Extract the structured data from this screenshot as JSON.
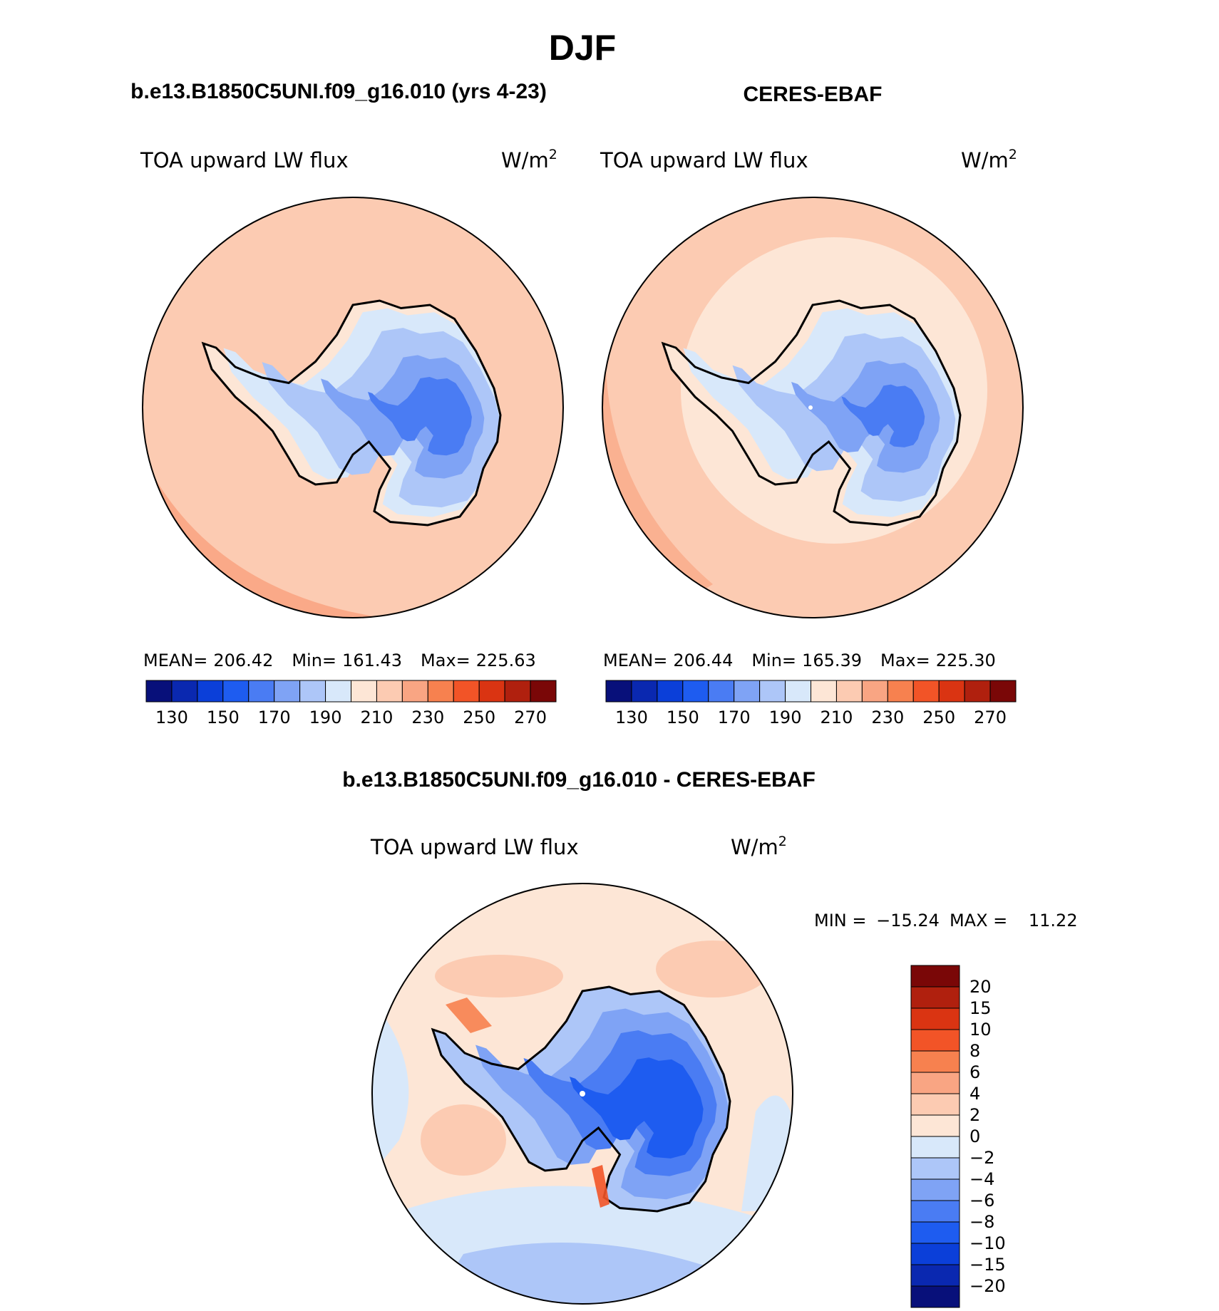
{
  "figure": {
    "season": "DJF",
    "model_title": "b.e13.B1850C5UNI.f09_g16.010 (yrs 4-23)",
    "obs_title": "CERES-EBAF",
    "diff_title": "b.e13.B1850C5UNI.f09_g16.010 - CERES-EBAF"
  },
  "panels": [
    {
      "id": "model",
      "variable": "TOA upward LW flux",
      "units_base": "W/m",
      "units_exp": "2",
      "mean_label": "MEAN=",
      "mean": "206.42",
      "min_label": "Min=",
      "min": "161.43",
      "max_label": "Max=",
      "max": "225.63"
    },
    {
      "id": "obs",
      "variable": "TOA upward LW flux",
      "units_base": "W/m",
      "units_exp": "2",
      "mean_label": "MEAN=",
      "mean": "206.44",
      "min_label": "Min=",
      "min": "165.39",
      "max_label": "Max=",
      "max": "225.30"
    }
  ],
  "diff_panel": {
    "variable": "TOA upward LW flux",
    "units_base": "W/m",
    "units_exp": "2",
    "min_label": "MIN = ",
    "min": "−15.24",
    "max_label": "MAX = ",
    "max": "11.22"
  },
  "chart_data": [
    {
      "type": "heatmap",
      "title": "TOA upward LW flux (model)",
      "units": "W/m^2",
      "levels": [
        130,
        140,
        150,
        160,
        170,
        180,
        190,
        200,
        210,
        220,
        230,
        240,
        250,
        260,
        270
      ],
      "tick_labels": [
        "130",
        "150",
        "170",
        "190",
        "210",
        "230",
        "250",
        "270"
      ],
      "colors": [
        "#08107a",
        "#0a28b0",
        "#0b3fd9",
        "#1e5cf0",
        "#4a7cf3",
        "#7fa3f5",
        "#adc6f8",
        "#d8e8fa",
        "#fde6d6",
        "#fccbb2",
        "#f9a583",
        "#f7814f",
        "#f25427",
        "#da3412",
        "#b0200e",
        "#7a0707"
      ],
      "mean": 206.42,
      "min": 161.43,
      "max": 225.63
    },
    {
      "type": "heatmap",
      "title": "TOA upward LW flux (CERES-EBAF)",
      "units": "W/m^2",
      "levels": [
        130,
        140,
        150,
        160,
        170,
        180,
        190,
        200,
        210,
        220,
        230,
        240,
        250,
        260,
        270
      ],
      "tick_labels": [
        "130",
        "150",
        "170",
        "190",
        "210",
        "230",
        "250",
        "270"
      ],
      "colors": [
        "#08107a",
        "#0a28b0",
        "#0b3fd9",
        "#1e5cf0",
        "#4a7cf3",
        "#7fa3f5",
        "#adc6f8",
        "#d8e8fa",
        "#fde6d6",
        "#fccbb2",
        "#f9a583",
        "#f7814f",
        "#f25427",
        "#da3412",
        "#b0200e",
        "#7a0707"
      ],
      "mean": 206.44,
      "min": 165.39,
      "max": 225.3
    },
    {
      "type": "heatmap",
      "title": "TOA upward LW flux (difference)",
      "units": "W/m^2",
      "levels": [
        -20,
        -15,
        -10,
        -8,
        -6,
        -4,
        -2,
        0,
        2,
        4,
        6,
        8,
        10,
        15,
        20
      ],
      "tick_labels": [
        "20",
        "15",
        "10",
        "8",
        "6",
        "4",
        "2",
        "0",
        "−2",
        "−4",
        "−6",
        "−8",
        "−10",
        "−15",
        "−20"
      ],
      "colors": [
        "#08107a",
        "#0a28b0",
        "#0b3fd9",
        "#1e5cf0",
        "#4a7cf3",
        "#7fa3f5",
        "#adc6f8",
        "#d8e8fa",
        "#fde6d6",
        "#fccbb2",
        "#f9a583",
        "#f7814f",
        "#f25427",
        "#da3412",
        "#b0200e",
        "#7a0707"
      ],
      "min": -15.24,
      "max": 11.22
    }
  ]
}
